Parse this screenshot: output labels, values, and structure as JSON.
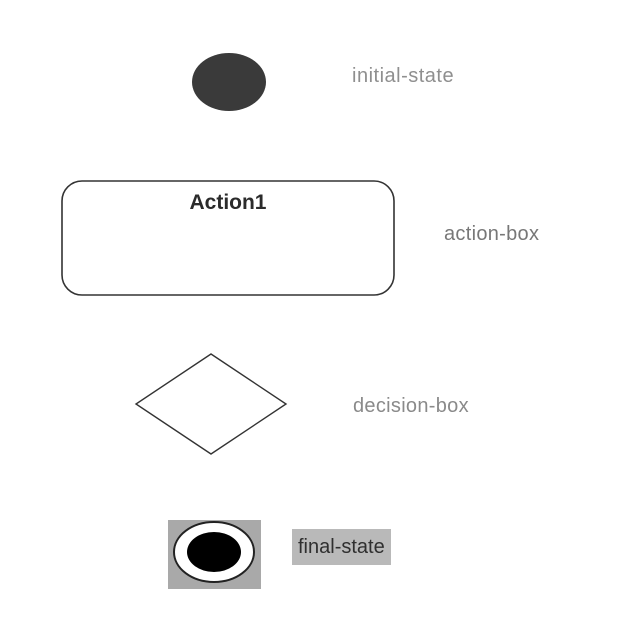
{
  "diagram": {
    "nodes": [
      {
        "id": "initial-state",
        "shape": "filled-circle",
        "label": "initial-state"
      },
      {
        "id": "action-box",
        "shape": "rounded-rectangle",
        "title": "Action1",
        "label": "action-box"
      },
      {
        "id": "decision-box",
        "shape": "diamond",
        "label": "decision-box"
      },
      {
        "id": "final-state",
        "shape": "bullseye-circle",
        "label": "final-state"
      }
    ],
    "colors": {
      "initial_fill": "#3a3a3a",
      "final_fill": "#000000",
      "final_bg": "#a9a9a9",
      "label_bg": "#b9b9b9",
      "stroke": "#333333"
    }
  }
}
